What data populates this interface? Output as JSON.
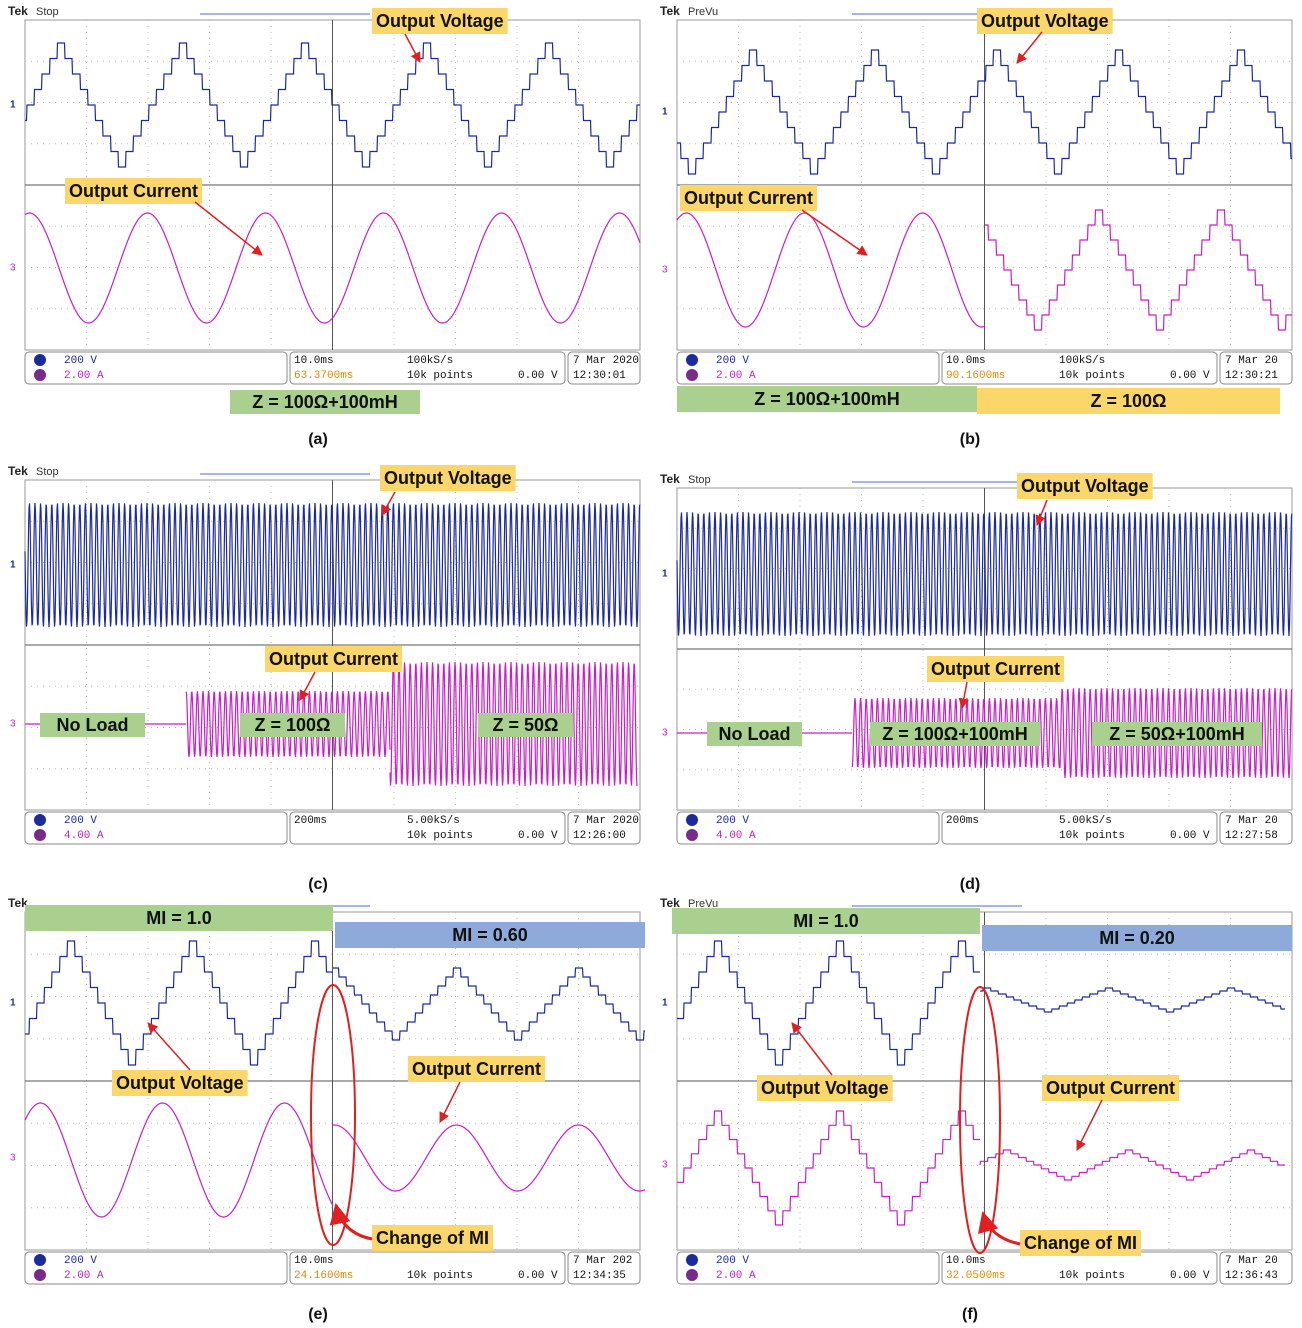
{
  "panels": [
    {
      "caption": "(a)",
      "brand": "Tek",
      "status": "Stop",
      "ch1_marker": "1",
      "ch3_marker": "3",
      "annotations": [
        "Output Voltage",
        "Output Current"
      ],
      "load_labels": [
        "Z = 100Ω+100mH"
      ],
      "ch1_scale": "200 V",
      "ch3_scale": "2.00 A",
      "timebase": "10.0ms",
      "trigger_pos": "63.3700ms",
      "sample_rate": "100kS/s",
      "record": "10k points",
      "trigger_level": "0.00 V",
      "date": "7 Mar 2020",
      "time": "12:30:01"
    },
    {
      "caption": "(b)",
      "brand": "Tek",
      "status": "PreVu",
      "ch1_marker": "1",
      "ch3_marker": "3",
      "annotations": [
        "Output Voltage",
        "Output Current"
      ],
      "load_labels": [
        "Z = 100Ω+100mH",
        "Z = 100Ω"
      ],
      "ch1_scale": "200 V",
      "ch3_scale": "2.00 A",
      "timebase": "10.0ms",
      "trigger_pos": "90.1600ms",
      "sample_rate": "100kS/s",
      "record": "10k points",
      "trigger_level": "0.00 V",
      "date": "7 Mar 20",
      "time": "12:30:21"
    },
    {
      "caption": "(c)",
      "brand": "Tek",
      "status": "Stop",
      "ch1_marker": "1",
      "ch3_marker": "3",
      "annotations": [
        "Output Voltage",
        "Output Current"
      ],
      "load_labels": [
        "No Load",
        "Z = 100Ω",
        "Z = 50Ω"
      ],
      "ch1_scale": "200 V",
      "ch3_scale": "4.00 A",
      "timebase": "200ms",
      "sample_rate": "5.00kS/s",
      "record": "10k points",
      "trigger_level": "0.00 V",
      "date": "7 Mar 2020",
      "time": "12:26:00"
    },
    {
      "caption": "(d)",
      "brand": "Tek",
      "status": "Stop",
      "ch1_marker": "1",
      "ch3_marker": "3",
      "annotations": [
        "Output Voltage",
        "Output Current"
      ],
      "load_labels": [
        "No Load",
        "Z = 100Ω+100mH",
        "Z = 50Ω+100mH"
      ],
      "ch1_scale": "200 V",
      "ch3_scale": "4.00 A",
      "timebase": "200ms",
      "sample_rate": "5.00kS/s",
      "record": "10k points",
      "trigger_level": "0.00 V",
      "date": "7 Mar 20",
      "time": "12:27:58"
    },
    {
      "caption": "(e)",
      "brand": "Tek",
      "ch1_marker": "1",
      "ch3_marker": "3",
      "annotations": [
        "Output Voltage",
        "Output Current",
        "Change of MI"
      ],
      "load_labels": [
        "MI = 1.0",
        "MI = 0.60"
      ],
      "ch1_scale": "200 V",
      "ch3_scale": "2.00 A",
      "timebase": "10.0ms",
      "trigger_pos": "24.1600ms",
      "record": "10k points",
      "trigger_level": "0.00 V",
      "date": "7 Mar 202",
      "time": "12:34:35"
    },
    {
      "caption": "(f)",
      "brand": "Tek",
      "status": "PreVu",
      "ch1_marker": "1",
      "ch3_marker": "3",
      "annotations": [
        "Output Voltage",
        "Output Current",
        "Change of MI"
      ],
      "load_labels": [
        "MI = 1.0",
        "MI = 0.20"
      ],
      "ch1_scale": "200 V",
      "ch3_scale": "2.00 A",
      "timebase": "10.0ms",
      "trigger_pos": "32.0500ms",
      "record": "10k points",
      "trigger_level": "0.00 V",
      "date": "7 Mar 20",
      "time": "12:36:43"
    }
  ]
}
